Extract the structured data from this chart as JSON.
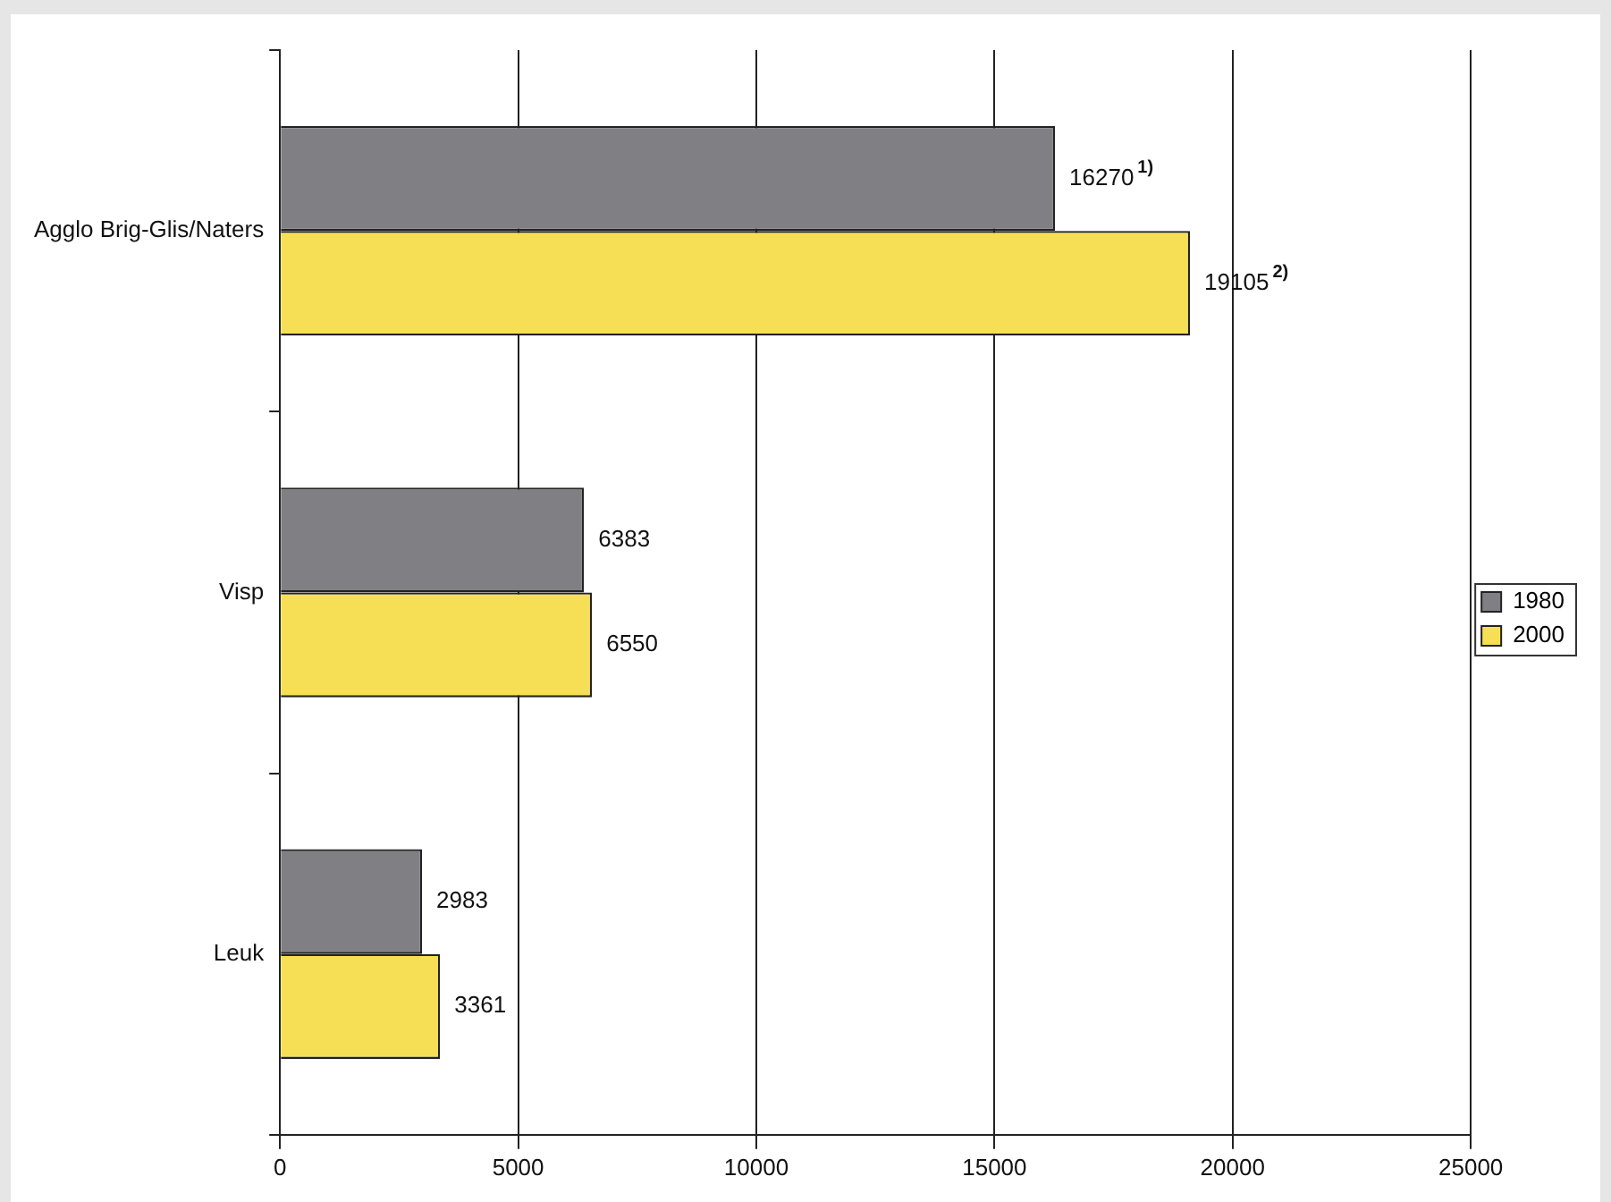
{
  "chart_data": {
    "type": "bar",
    "orientation": "horizontal",
    "categories": [
      "Agglo Brig-Glis/Naters",
      "Visp",
      "Leuk"
    ],
    "series": [
      {
        "name": "1980",
        "color": "#807f84",
        "values": [
          16270,
          6383,
          2983
        ],
        "value_labels": [
          "16270$^{1)}$",
          "6383",
          "2983"
        ]
      },
      {
        "name": "2000",
        "color": "#f6df55",
        "values": [
          19105,
          6550,
          3361
        ],
        "value_labels": [
          "19105$^{2)}$",
          "6550",
          "3361"
        ]
      }
    ],
    "xlim": [
      0,
      25000
    ],
    "xticks": [
      0,
      5000,
      10000,
      15000,
      20000,
      25000
    ],
    "grid": "x",
    "legend": "right"
  }
}
